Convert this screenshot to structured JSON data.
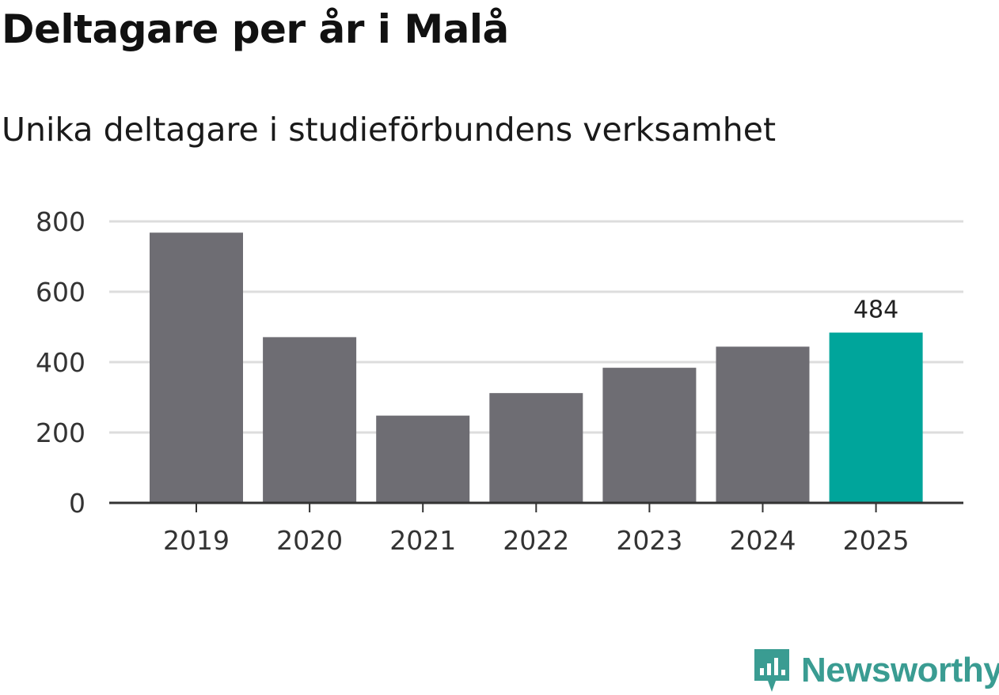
{
  "chart_data": {
    "type": "bar",
    "title": "Deltagare per år i Malå",
    "subtitle": "Unika deltagare i studieförbundens verksamhet",
    "categories": [
      "2019",
      "2020",
      "2021",
      "2022",
      "2023",
      "2024",
      "2025"
    ],
    "values": [
      768,
      471,
      248,
      312,
      384,
      444,
      484
    ],
    "highlight_index": 6,
    "highlight_label": "484",
    "yticks": [
      "0",
      "200",
      "400",
      "600",
      "800"
    ],
    "ylim": [
      0,
      800
    ],
    "xlabel": "",
    "ylabel": "",
    "grid": true,
    "colors": {
      "bar": "#6e6d73",
      "highlight": "#00a59b",
      "grid": "#dddddd",
      "axis": "#333333",
      "text": "#333333"
    }
  },
  "branding": {
    "name": "Newsworthy",
    "icon": "newsworthy-logo-icon",
    "color": "#3a9c92"
  }
}
